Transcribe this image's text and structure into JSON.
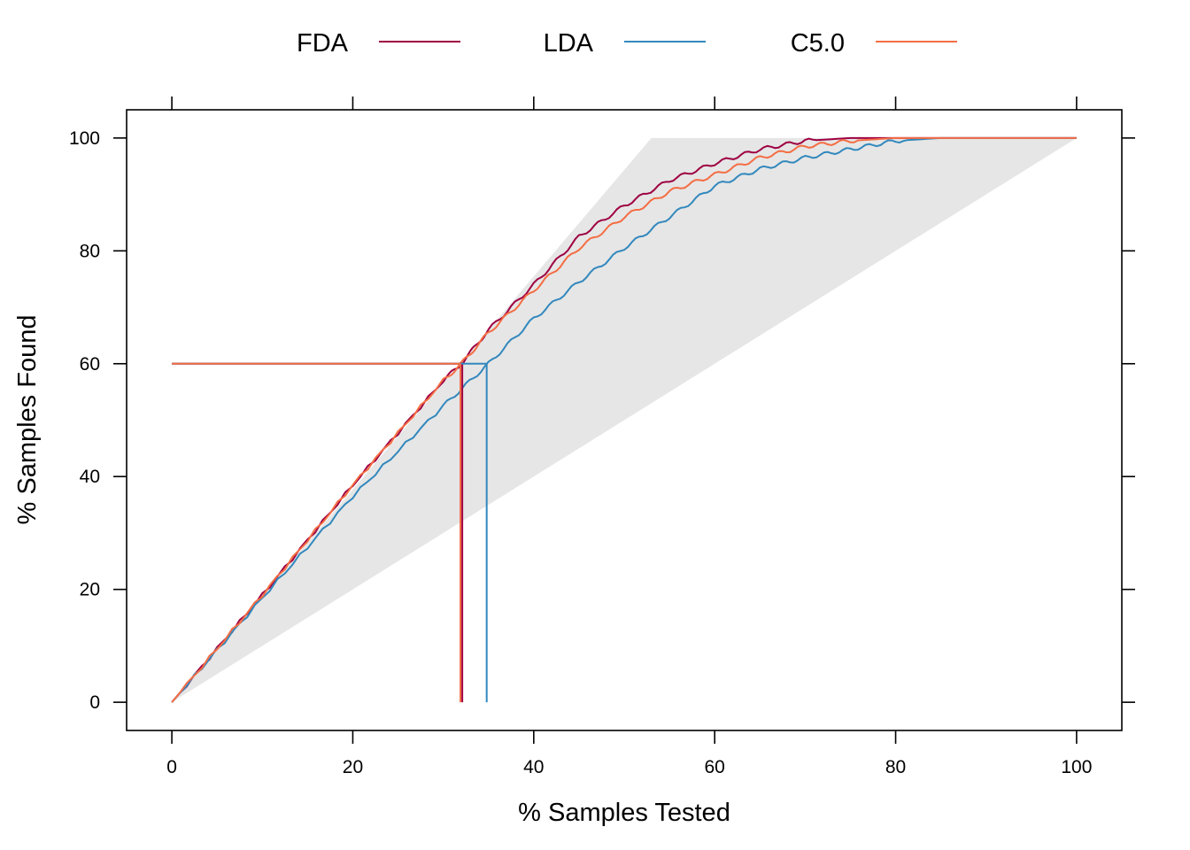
{
  "chart_data": {
    "type": "line",
    "title": "",
    "xlabel": "% Samples Tested",
    "ylabel": "% Samples Found",
    "xlim": [
      -5,
      105
    ],
    "ylim": [
      -5,
      105
    ],
    "xticks": [
      "0",
      "20",
      "40",
      "60",
      "80",
      "100"
    ],
    "yticks": [
      "0",
      "20",
      "40",
      "60",
      "80",
      "100"
    ],
    "grid": false,
    "legend_position": "top",
    "reference_region": {
      "color": "#e6e6e6",
      "polygon": [
        [
          0,
          0
        ],
        [
          53,
          100
        ],
        [
          100,
          100
        ]
      ]
    },
    "series": [
      {
        "name": "FDA",
        "color": "#9e0142",
        "x": [
          0,
          10,
          20,
          30,
          32,
          35,
          40,
          45,
          50,
          55,
          60,
          65,
          70,
          75,
          80,
          100
        ],
        "y": [
          0,
          19,
          38.5,
          57,
          60,
          66,
          74,
          82.5,
          88,
          92.5,
          95.5,
          98,
          99.5,
          100,
          100,
          100
        ],
        "threshold": {
          "x": 32.1,
          "y": 60
        }
      },
      {
        "name": "LDA",
        "color": "#3288bd",
        "x": [
          0,
          10,
          20,
          30,
          35,
          40,
          45,
          50,
          55,
          60,
          65,
          70,
          75,
          80,
          85,
          100
        ],
        "y": [
          0,
          18.5,
          36.5,
          52.5,
          60,
          68,
          74.5,
          80.5,
          86,
          91.5,
          94.5,
          96.5,
          98,
          99.5,
          100,
          100
        ],
        "threshold": {
          "x": 34.8,
          "y": 60
        }
      },
      {
        "name": "C5.0",
        "color": "#f46d43",
        "x": [
          0,
          10,
          20,
          30,
          32,
          35,
          40,
          45,
          50,
          55,
          60,
          65,
          70,
          75,
          80,
          100
        ],
        "y": [
          0,
          19,
          38.5,
          57,
          60,
          65.5,
          73,
          80.5,
          86,
          90.5,
          93.5,
          96.5,
          98.5,
          99.5,
          100,
          100
        ],
        "threshold": {
          "x": 31.9,
          "y": 60
        }
      }
    ]
  }
}
